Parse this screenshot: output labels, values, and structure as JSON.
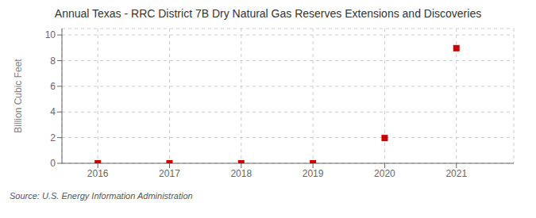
{
  "chart_data": {
    "type": "scatter",
    "title": "Annual Texas - RRC District 7B Dry Natural Gas Reserves Extensions and Discoveries",
    "ylabel": "Billion Cubic Feet",
    "source": "Source: U.S. Energy Information Administration",
    "x": [
      2016,
      2017,
      2018,
      2019,
      2020,
      2021
    ],
    "values": [
      0.0,
      0.0,
      0.0,
      0.0,
      1.97,
      8.97
    ],
    "xlim": [
      2015.5,
      2021.8
    ],
    "ylim": [
      0,
      10.5
    ],
    "xticks": [
      2016,
      2017,
      2018,
      2019,
      2020,
      2021
    ],
    "yticks": [
      0,
      2,
      4,
      6,
      8,
      10
    ],
    "color": "#cc0000",
    "marker": "square",
    "grid": true
  }
}
